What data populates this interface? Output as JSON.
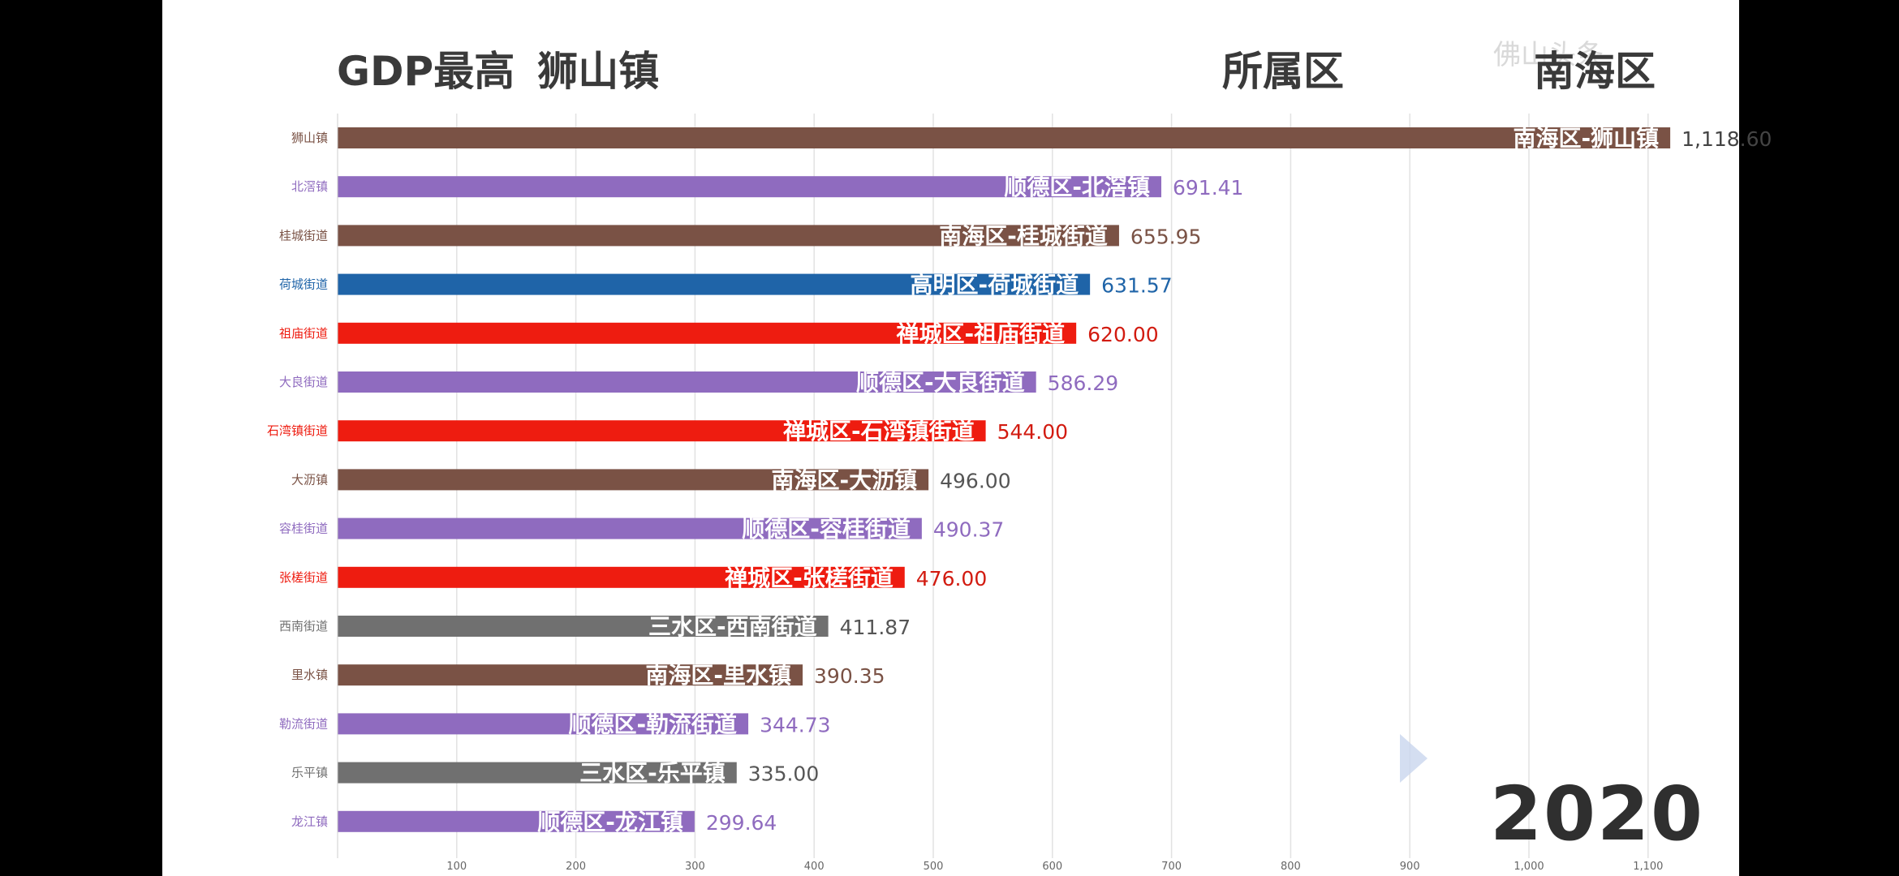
{
  "header": {
    "title_prefix": "GDP最高",
    "title_town": "狮山镇",
    "district_label": "所属区",
    "district_value": "南海区"
  },
  "watermark": "佛山头条",
  "year": "2020",
  "chart_data": {
    "type": "bar",
    "orientation": "horizontal",
    "title": "GDP最高 狮山镇",
    "xlim": [
      0,
      1100
    ],
    "xticks": [
      100,
      200,
      300,
      400,
      500,
      600,
      700,
      800,
      900,
      1000,
      1100
    ],
    "xtick_labels": [
      "100",
      "200",
      "300",
      "400",
      "500",
      "600",
      "700",
      "800",
      "900",
      "1,000",
      "1,100"
    ],
    "categories": [
      "狮山镇",
      "北滘镇",
      "桂城街道",
      "荷城街道",
      "祖庙街道",
      "大良街道",
      "石湾镇街道",
      "大沥镇",
      "容桂街道",
      "张槎街道",
      "西南街道",
      "里水镇",
      "勒流街道",
      "乐平镇",
      "龙江镇"
    ],
    "bar_labels": [
      "南海区-狮山镇",
      "顺德区-北滘镇",
      "南海区-桂城街道",
      "高明区-荷城街道",
      "禅城区-祖庙街道",
      "顺德区-大良街道",
      "禅城区-石湾镇街道",
      "南海区-大沥镇",
      "顺德区-容桂街道",
      "禅城区-张槎街道",
      "三水区-西南街道",
      "南海区-里水镇",
      "顺德区-勒流街道",
      "三水区-乐平镇",
      "顺德区-龙江镇"
    ],
    "values": [
      1118.6,
      691.41,
      655.95,
      631.57,
      620.0,
      586.29,
      544.0,
      496.0,
      490.37,
      476.0,
      411.87,
      390.35,
      344.73,
      335.0,
      299.64
    ],
    "value_labels": [
      "1,118.60",
      "691.41",
      "655.95",
      "631.57",
      "620.00",
      "586.29",
      "544.00",
      "496.00",
      "490.37",
      "476.00",
      "411.87",
      "390.35",
      "344.73",
      "335.00",
      "299.64"
    ],
    "colors": [
      "#7a5245",
      "#8f6bbf",
      "#7a5245",
      "#1f64a8",
      "#ee1c10",
      "#8f6bbf",
      "#ee1c10",
      "#7a5245",
      "#8f6bbf",
      "#ee1c10",
      "#707070",
      "#7a5245",
      "#8f6bbf",
      "#707070",
      "#8f6bbf"
    ],
    "value_label_colors": [
      "#444444",
      "#8f6bbf",
      "#7a5245",
      "#1f64a8",
      "#d21b10",
      "#8f6bbf",
      "#d21b10",
      "#555555",
      "#8f6bbf",
      "#d21b10",
      "#555555",
      "#7a5245",
      "#8f6bbf",
      "#555555",
      "#8f6bbf"
    ]
  }
}
